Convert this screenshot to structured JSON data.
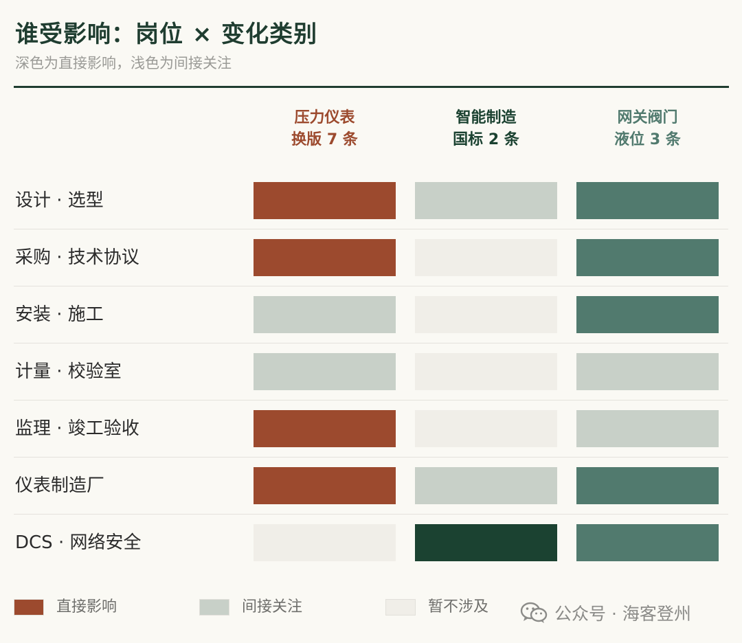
{
  "title": "谁受影响：岗位 × 变化类别",
  "subtitle": "深色为直接影响，浅色为间接关注",
  "chart_data": {
    "type": "heatmap",
    "columns": [
      {
        "line1": "压力仪表",
        "line2": "换版 7 条",
        "color": "#9c4a2e"
      },
      {
        "line1": "智能制造",
        "line2": "国标 2 条",
        "color": "#1b4231"
      },
      {
        "line1": "网关阀门",
        "line2": "液位 3 条",
        "color": "#517a6e"
      }
    ],
    "rows": [
      {
        "label": "设计 · 选型",
        "values": [
          "direct",
          "indirect",
          "direct"
        ]
      },
      {
        "label": "采购 · 技术协议",
        "values": [
          "direct",
          "none",
          "direct"
        ]
      },
      {
        "label": "安装 · 施工",
        "values": [
          "indirect",
          "none",
          "direct"
        ]
      },
      {
        "label": "计量 · 校验室",
        "values": [
          "indirect",
          "none",
          "indirect"
        ]
      },
      {
        "label": "监理 · 竣工验收",
        "values": [
          "direct",
          "none",
          "indirect"
        ]
      },
      {
        "label": "仪表制造厂",
        "values": [
          "direct",
          "indirect",
          "direct"
        ]
      },
      {
        "label": "DCS · 网络安全",
        "values": [
          "none",
          "direct",
          "direct"
        ]
      }
    ],
    "level_colors": {
      "indirect": "#c8d0c8",
      "none": "#f0eee8"
    },
    "legend": [
      {
        "key": "direct",
        "label": "直接影响",
        "color": "#9c4a2e"
      },
      {
        "key": "indirect",
        "label": "间接关注",
        "color": "#c8d0c8"
      },
      {
        "key": "none",
        "label": "暂不涉及",
        "color": "#f0eee8"
      }
    ]
  },
  "watermark": {
    "text": "公众号 · 海客登州",
    "icon": "wechat-icon"
  }
}
